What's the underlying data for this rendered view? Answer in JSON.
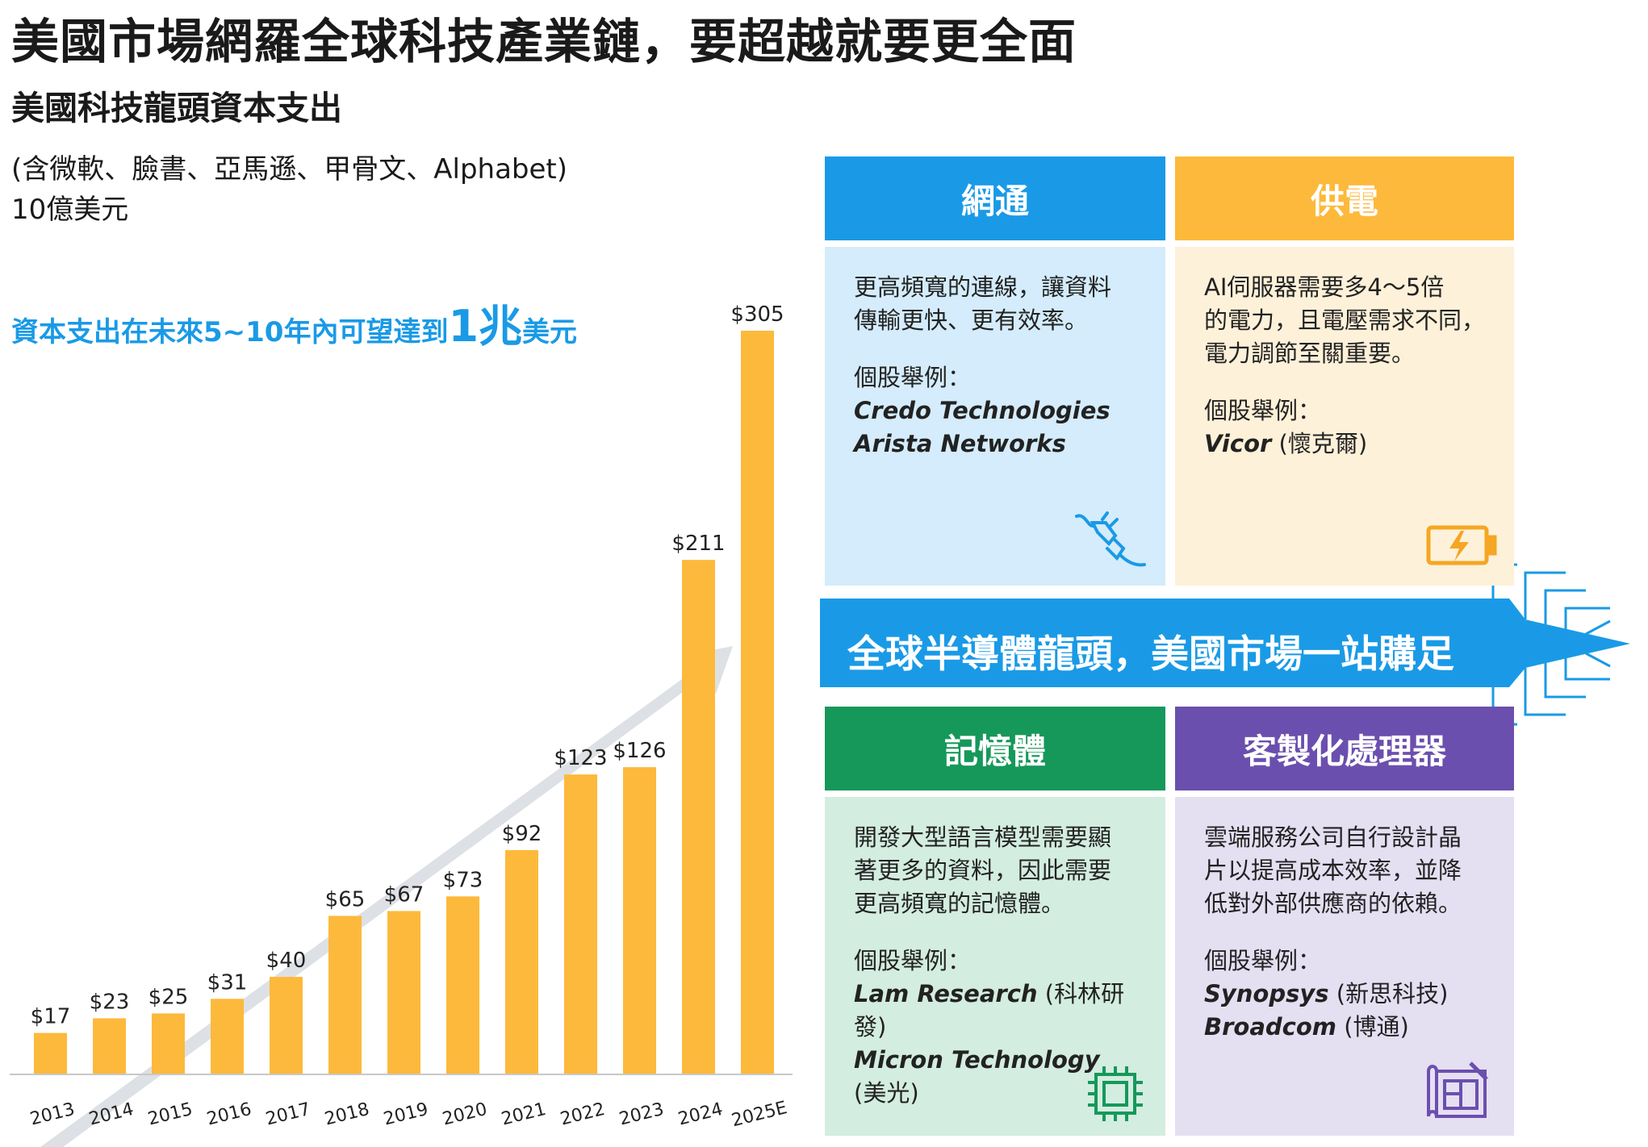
{
  "title": "美國市場網羅全球科技產業鏈，要超越就要更全面",
  "chart_title": "美國科技龍頭資本支出",
  "companies_note": "(含微軟、臉書、亞馬遜、甲骨文、Alphabet)",
  "unit": "10億美元",
  "callout": {
    "text": "資本支出在未來5~10年內可望達到",
    "highlight": "1兆",
    "suffix": "美元"
  },
  "chart_data": {
    "type": "bar",
    "categories": [
      "2013",
      "2014",
      "2015",
      "2016",
      "2017",
      "2018",
      "2019",
      "2020",
      "2021",
      "2022",
      "2023",
      "2024",
      "2025E"
    ],
    "values": [
      17,
      23,
      25,
      31,
      40,
      65,
      67,
      73,
      92,
      123,
      126,
      211,
      305
    ],
    "data_labels": [
      "$17",
      "$23",
      "$25",
      "$31",
      "$40",
      "$65",
      "$67",
      "$73",
      "$92",
      "$123",
      "$126",
      "$211",
      "$305"
    ],
    "ylim": [
      0,
      305
    ],
    "bar_color": "#fdb93b",
    "trend_arrow_color": "#dde1e5",
    "grid": false
  },
  "banner": {
    "text": "全球半導體龍頭，美國市場一站購足",
    "color": "#1a9ae6"
  },
  "panels": [
    {
      "id": "networking",
      "title": "網通",
      "header_color": "#1a9ae6",
      "bg_color": "#d4ecfb",
      "description": "更高頻寬的連線，讓資料\n傳輸更快、更有效率。",
      "example_label": "個股舉例：",
      "stocks": [
        {
          "name": "Credo Technologies",
          "cn": ""
        },
        {
          "name": "Arista Networks",
          "cn": ""
        }
      ],
      "icon": "plug-connection-icon",
      "icon_color": "#1a9ae6"
    },
    {
      "id": "power",
      "title": "供電",
      "header_color": "#fdb93b",
      "bg_color": "#fef1d9",
      "description": "AI伺服器需要多4～5倍\n的電力，且電壓需求不同，\n電力調節至關重要。",
      "example_label": "個股舉例：",
      "stocks": [
        {
          "name": "Vicor",
          "cn": "(懷克爾)"
        }
      ],
      "icon": "battery-charging-icon",
      "icon_color": "#f5a623"
    },
    {
      "id": "memory",
      "title": "記憶體",
      "header_color": "#16985a",
      "bg_color": "#d3ede0",
      "description": "開發大型語言模型需要顯\n著更多的資料，因此需要\n更高頻寬的記憶體。",
      "example_label": "個股舉例：",
      "stocks": [
        {
          "name": "Lam Research",
          "cn": "(科林研發)"
        },
        {
          "name": "Micron Technology",
          "cn": "(美光)"
        }
      ],
      "icon": "chip-icon",
      "icon_color": "#16985a"
    },
    {
      "id": "custom-processor",
      "title": "客製化處理器",
      "header_color": "#6b4fae",
      "bg_color": "#e5dff2",
      "description": "雲端服務公司自行設計晶\n片以提高成本效率，並降\n低對外部供應商的依賴。",
      "example_label": "個股舉例：",
      "stocks": [
        {
          "name": "Synopsys",
          "cn": "(新思科技)"
        },
        {
          "name": "Broadcom",
          "cn": "(博通)"
        }
      ],
      "icon": "blueprint-design-icon",
      "icon_color": "#6b4fae"
    }
  ]
}
